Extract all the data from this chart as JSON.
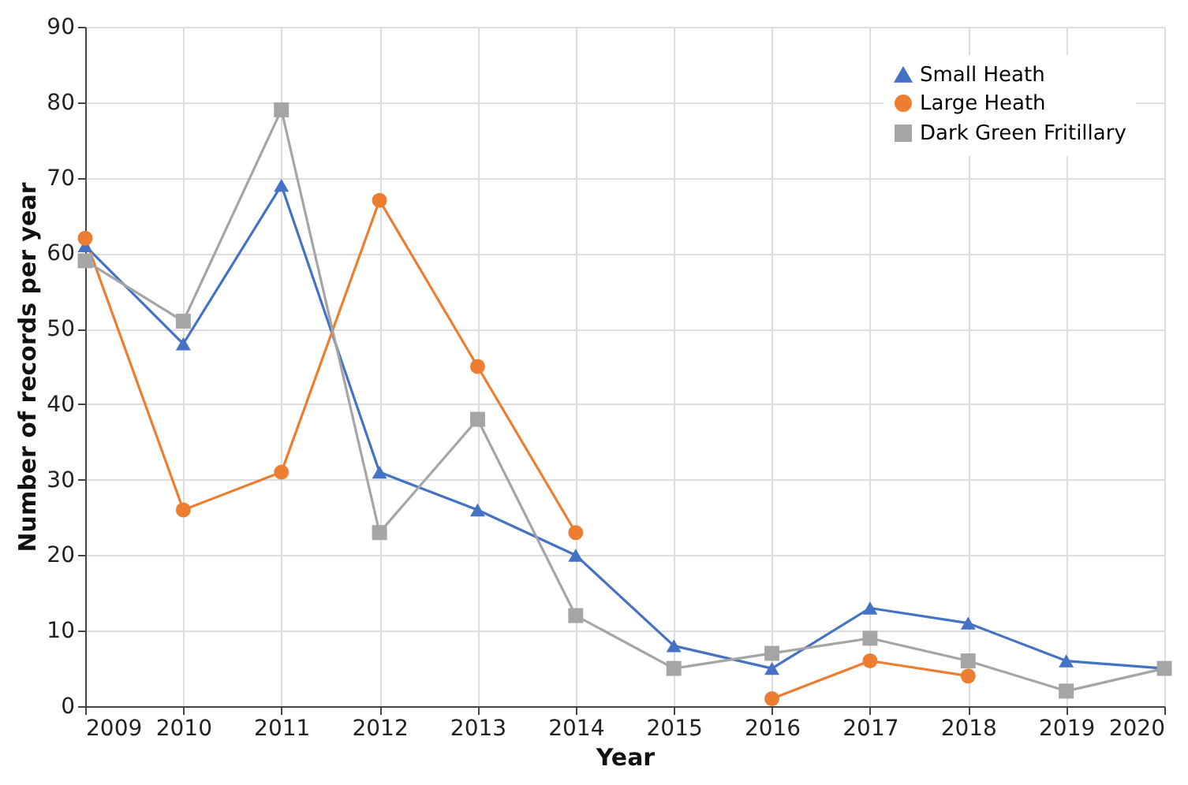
{
  "chart_data": {
    "type": "line",
    "xlabel": "Year",
    "ylabel": "Number of records per year",
    "x": [
      2009,
      2010,
      2011,
      2012,
      2013,
      2014,
      2015,
      2016,
      2017,
      2018,
      2019,
      2020
    ],
    "series": [
      {
        "name": "Small Heath",
        "color": "#4472c4",
        "marker": "triangle",
        "values": [
          61,
          48,
          69,
          31,
          26,
          20,
          8,
          5,
          13,
          11,
          6,
          5
        ]
      },
      {
        "name": "Large Heath",
        "color": "#ed7d31",
        "marker": "circle",
        "values": [
          62,
          26,
          31,
          67,
          45,
          23,
          null,
          1,
          6,
          4,
          null,
          null
        ]
      },
      {
        "name": "Dark Green Fritillary",
        "color": "#a5a5a5",
        "marker": "square",
        "values": [
          59,
          51,
          79,
          23,
          38,
          12,
          5,
          7,
          9,
          6,
          2,
          5
        ]
      }
    ],
    "xlim": [
      2009,
      2020
    ],
    "xticks": [
      2009,
      2010,
      2011,
      2012,
      2013,
      2014,
      2015,
      2016,
      2017,
      2018,
      2019,
      2020
    ],
    "ylim": [
      0,
      90
    ],
    "yticks": [
      0,
      10,
      20,
      30,
      40,
      50,
      60,
      70,
      80,
      90
    ],
    "grid": true,
    "legend": "top right",
    "line_style": "solid"
  }
}
